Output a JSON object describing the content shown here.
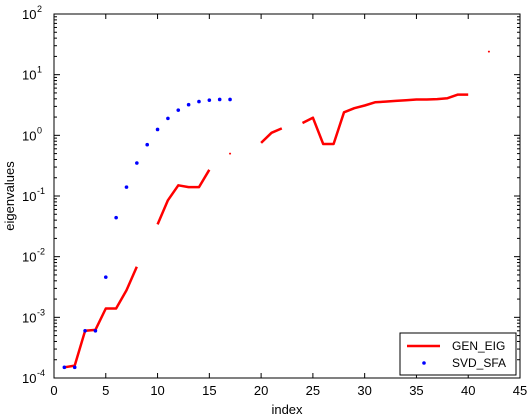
{
  "chart_data": {
    "type": "line",
    "xlabel": "index",
    "ylabel": "eigenvalues",
    "xlim": [
      0,
      45
    ],
    "ylim": [
      0.0001,
      100
    ],
    "yscale": "log",
    "xticks": [
      0,
      5,
      10,
      15,
      20,
      25,
      30,
      35,
      40,
      45
    ],
    "yticks": [
      {
        "base": "10",
        "exp": "-4",
        "value": 0.0001
      },
      {
        "base": "10",
        "exp": "-3",
        "value": 0.001
      },
      {
        "base": "10",
        "exp": "-2",
        "value": 0.01
      },
      {
        "base": "10",
        "exp": "-1",
        "value": 0.1
      },
      {
        "base": "10",
        "exp": "0",
        "value": 1
      },
      {
        "base": "10",
        "exp": "1",
        "value": 10
      },
      {
        "base": "10",
        "exp": "2",
        "value": 100
      }
    ],
    "grid": false,
    "legend_position": "bottom-right",
    "series": [
      {
        "name": "GEN_EIG",
        "style": "line",
        "color": "#ff0000",
        "segments": [
          [
            [
              1,
              0.00015
            ],
            [
              2,
              0.00016
            ],
            [
              3,
              0.0006
            ],
            [
              4,
              0.00062
            ],
            [
              5,
              0.0014
            ],
            [
              6,
              0.0014
            ],
            [
              7,
              0.0028
            ],
            [
              8,
              0.0068
            ]
          ],
          [
            [
              10,
              0.034
            ],
            [
              11,
              0.085
            ],
            [
              12,
              0.15
            ],
            [
              13,
              0.14
            ],
            [
              14,
              0.14
            ],
            [
              15,
              0.27
            ]
          ],
          [
            [
              17,
              0.5
            ]
          ],
          [
            [
              20,
              0.75
            ],
            [
              21,
              1.1
            ],
            [
              22,
              1.3
            ]
          ],
          [
            [
              24,
              1.6
            ],
            [
              25,
              1.95
            ],
            [
              26,
              0.72
            ],
            [
              27,
              0.72
            ],
            [
              28,
              2.4
            ],
            [
              29,
              2.8
            ],
            [
              30,
              3.1
            ],
            [
              31,
              3.5
            ],
            [
              32,
              3.6
            ],
            [
              33,
              3.7
            ],
            [
              34,
              3.8
            ],
            [
              35,
              3.9
            ],
            [
              36,
              3.9
            ],
            [
              37,
              3.95
            ],
            [
              38,
              4.1
            ],
            [
              39,
              4.7
            ],
            [
              40,
              4.7
            ]
          ],
          [
            [
              42,
              24
            ]
          ]
        ]
      },
      {
        "name": "SVD_SFA",
        "style": "points",
        "color": "#0000ff",
        "points": [
          [
            1,
            0.00015
          ],
          [
            2,
            0.00015
          ],
          [
            3,
            0.0006
          ],
          [
            4,
            0.0006
          ],
          [
            5,
            0.0046
          ],
          [
            6,
            0.044
          ],
          [
            7,
            0.14
          ],
          [
            8,
            0.35
          ],
          [
            9,
            0.7
          ],
          [
            10,
            1.25
          ],
          [
            11,
            1.9
          ],
          [
            12,
            2.6
          ],
          [
            13,
            3.2
          ],
          [
            14,
            3.6
          ],
          [
            15,
            3.8
          ],
          [
            16,
            3.9
          ],
          [
            17,
            3.9
          ]
        ]
      }
    ]
  }
}
